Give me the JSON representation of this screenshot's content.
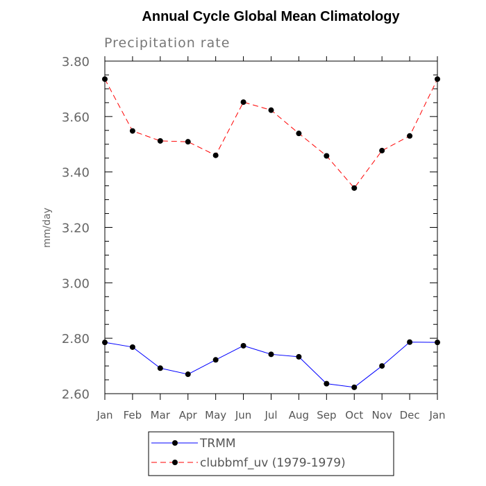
{
  "chart_data": {
    "type": "line",
    "title": "Annual Cycle Global Mean Climatology",
    "subtitle": "Precipitation rate",
    "ylabel": "mm/day",
    "xlabel": "",
    "categories": [
      "Jan",
      "Feb",
      "Mar",
      "Apr",
      "May",
      "Jun",
      "Jul",
      "Aug",
      "Sep",
      "Oct",
      "Nov",
      "Dec",
      "Jan"
    ],
    "ylim": [
      2.6,
      3.8
    ],
    "yticks": [
      "2.60",
      "2.80",
      "3.00",
      "3.20",
      "3.40",
      "3.60",
      "3.80"
    ],
    "ytick_values": [
      2.6,
      2.8,
      3.0,
      3.2,
      3.4,
      3.6,
      3.8
    ],
    "grid": false,
    "legend_position": "bottom",
    "series": [
      {
        "name": "TRMM",
        "color": "#0000ff",
        "line_style": "solid",
        "values": [
          2.785,
          2.768,
          2.692,
          2.67,
          2.722,
          2.773,
          2.742,
          2.733,
          2.636,
          2.623,
          2.7,
          2.786,
          2.785
        ]
      },
      {
        "name": "clubbmf_uv (1979-1979)",
        "color": "#ff0000",
        "line_style": "dashed",
        "values": [
          3.735,
          3.548,
          3.512,
          3.509,
          3.46,
          3.652,
          3.623,
          3.539,
          3.458,
          3.342,
          3.477,
          3.53,
          3.735
        ]
      }
    ]
  }
}
